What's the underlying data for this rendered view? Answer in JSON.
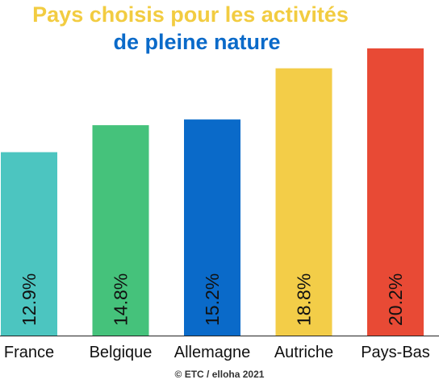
{
  "chart_data": {
    "type": "bar",
    "title_line1": "Pays choisis pour les activités",
    "title_line2": "de pleine nature",
    "categories": [
      "France",
      "Belgique",
      "Allemagne",
      "Autriche",
      "Pays-Bas"
    ],
    "values": [
      12.9,
      14.8,
      15.2,
      18.8,
      20.2
    ],
    "value_labels": [
      "12.9%",
      "14.8%",
      "15.2%",
      "18.8%",
      "20.2%"
    ],
    "colors": [
      "#4cc5c0",
      "#45c27b",
      "#0a6ac9",
      "#f3cd48",
      "#e84a35"
    ],
    "title_colors": [
      "#f2cc41",
      "#0a6ac9"
    ],
    "ylim": [
      0,
      20.2
    ],
    "grid": false,
    "legend": "none"
  },
  "source": "© ETC / elloha 2021"
}
